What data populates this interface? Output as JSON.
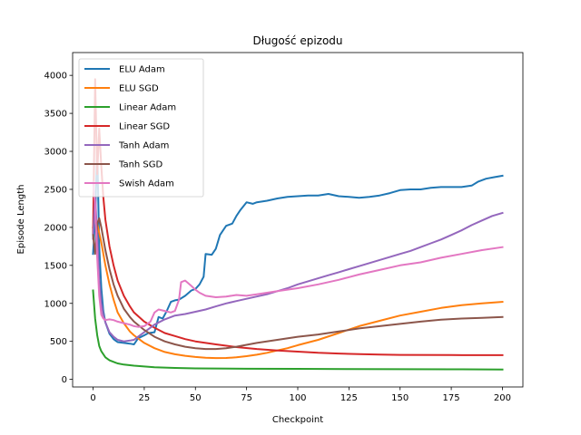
{
  "chart_data": {
    "type": "line",
    "title": "Długość epizodu",
    "xlabel": "Checkpoint",
    "ylabel": "Episode Length",
    "xlim": [
      -10,
      210
    ],
    "ylim": [
      -100,
      4300
    ],
    "xticks": [
      0,
      25,
      50,
      75,
      100,
      125,
      150,
      175,
      200
    ],
    "yticks": [
      0,
      500,
      1000,
      1500,
      2000,
      2500,
      3000,
      3500,
      4000
    ],
    "grid": false,
    "legend_position": "upper-left",
    "series": [
      {
        "name": "ELU Adam",
        "color": "#1f77b4",
        "x": [
          0,
          1,
          2,
          3,
          4,
          5,
          6,
          8,
          10,
          12,
          15,
          18,
          20,
          22,
          25,
          27,
          30,
          32,
          34,
          36,
          38,
          40,
          42,
          45,
          48,
          50,
          52,
          54,
          55,
          58,
          60,
          62,
          65,
          68,
          70,
          72,
          75,
          78,
          80,
          85,
          90,
          95,
          100,
          105,
          110,
          115,
          120,
          125,
          130,
          135,
          140,
          145,
          150,
          155,
          160,
          165,
          170,
          175,
          180,
          185,
          188,
          192,
          196,
          200
        ],
        "y": [
          1650,
          2100,
          3050,
          1750,
          1200,
          900,
          750,
          600,
          530,
          490,
          480,
          470,
          460,
          540,
          580,
          610,
          620,
          820,
          800,
          900,
          1020,
          1040,
          1050,
          1100,
          1170,
          1190,
          1250,
          1350,
          1650,
          1640,
          1720,
          1900,
          2020,
          2050,
          2150,
          2230,
          2330,
          2310,
          2330,
          2350,
          2380,
          2400,
          2410,
          2420,
          2420,
          2440,
          2410,
          2400,
          2390,
          2400,
          2420,
          2450,
          2490,
          2500,
          2500,
          2520,
          2530,
          2530,
          2530,
          2550,
          2600,
          2640,
          2660,
          2680
        ]
      },
      {
        "name": "ELU SGD",
        "color": "#ff7f0e",
        "x": [
          0,
          1,
          2,
          4,
          6,
          8,
          10,
          12,
          15,
          18,
          20,
          25,
          30,
          35,
          40,
          45,
          50,
          55,
          60,
          65,
          70,
          75,
          80,
          85,
          90,
          95,
          100,
          110,
          120,
          130,
          140,
          150,
          160,
          170,
          180,
          190,
          200
        ],
        "y": [
          2000,
          2150,
          2050,
          1800,
          1500,
          1250,
          1050,
          880,
          740,
          630,
          580,
          480,
          410,
          360,
          330,
          310,
          295,
          285,
          280,
          282,
          290,
          305,
          325,
          350,
          380,
          410,
          450,
          520,
          610,
          700,
          770,
          840,
          890,
          940,
          975,
          1000,
          1020
        ]
      },
      {
        "name": "Linear Adam",
        "color": "#2ca02c",
        "x": [
          0,
          1,
          2,
          3,
          4,
          6,
          8,
          10,
          12,
          15,
          20,
          25,
          30,
          40,
          50,
          75,
          100,
          125,
          150,
          175,
          200
        ],
        "y": [
          1170,
          800,
          580,
          440,
          370,
          290,
          250,
          230,
          210,
          195,
          180,
          170,
          160,
          150,
          145,
          140,
          138,
          136,
          134,
          132,
          130
        ]
      },
      {
        "name": "Linear SGD",
        "color": "#d62728",
        "x": [
          0,
          1,
          2,
          3,
          4,
          5,
          6,
          8,
          10,
          12,
          15,
          18,
          20,
          25,
          30,
          35,
          40,
          45,
          50,
          60,
          70,
          80,
          90,
          100,
          110,
          120,
          130,
          140,
          150,
          175,
          200
        ],
        "y": [
          1900,
          3950,
          2700,
          3300,
          2800,
          2400,
          2100,
          1750,
          1500,
          1300,
          1100,
          960,
          880,
          760,
          680,
          610,
          570,
          530,
          500,
          460,
          425,
          400,
          380,
          365,
          350,
          340,
          332,
          326,
          322,
          320,
          318
        ]
      },
      {
        "name": "Tanh Adam",
        "color": "#9467bd",
        "x": [
          0,
          1,
          2,
          3,
          4,
          5,
          6,
          8,
          10,
          12,
          15,
          18,
          20,
          22,
          25,
          28,
          30,
          35,
          40,
          45,
          50,
          55,
          60,
          65,
          70,
          75,
          80,
          85,
          90,
          95,
          100,
          105,
          110,
          115,
          120,
          125,
          130,
          135,
          140,
          145,
          150,
          155,
          160,
          165,
          170,
          175,
          180,
          185,
          190,
          195,
          200
        ],
        "y": [
          1850,
          2400,
          1900,
          1300,
          1000,
          850,
          750,
          620,
          560,
          520,
          500,
          510,
          520,
          560,
          620,
          680,
          720,
          790,
          840,
          860,
          890,
          920,
          960,
          1000,
          1030,
          1060,
          1090,
          1120,
          1160,
          1200,
          1250,
          1290,
          1330,
          1370,
          1410,
          1450,
          1490,
          1530,
          1570,
          1610,
          1650,
          1690,
          1740,
          1790,
          1840,
          1900,
          1960,
          2030,
          2090,
          2150,
          2190
        ]
      },
      {
        "name": "Tanh SGD",
        "color": "#8c564b",
        "x": [
          0,
          1,
          2,
          3,
          4,
          6,
          8,
          10,
          12,
          15,
          18,
          20,
          25,
          30,
          35,
          40,
          45,
          50,
          55,
          60,
          65,
          70,
          75,
          80,
          90,
          100,
          110,
          120,
          130,
          140,
          150,
          160,
          170,
          180,
          190,
          200
        ],
        "y": [
          1900,
          1650,
          2050,
          2120,
          2000,
          1700,
          1450,
          1250,
          1100,
          930,
          820,
          760,
          650,
          560,
          500,
          460,
          430,
          410,
          400,
          400,
          410,
          430,
          455,
          480,
          520,
          560,
          590,
          630,
          670,
          700,
          730,
          760,
          785,
          800,
          810,
          820
        ]
      },
      {
        "name": "Swish Adam",
        "color": "#e377c2",
        "x": [
          0,
          1,
          2,
          3,
          4,
          5,
          6,
          8,
          10,
          12,
          15,
          18,
          20,
          22,
          25,
          28,
          30,
          32,
          35,
          38,
          40,
          42,
          43,
          45,
          48,
          50,
          52,
          55,
          60,
          65,
          70,
          75,
          80,
          90,
          100,
          110,
          120,
          130,
          140,
          150,
          160,
          170,
          180,
          190,
          200
        ],
        "y": [
          2600,
          2300,
          1600,
          1100,
          850,
          800,
          780,
          790,
          780,
          760,
          740,
          720,
          700,
          690,
          700,
          760,
          880,
          920,
          900,
          880,
          900,
          1050,
          1280,
          1300,
          1230,
          1180,
          1140,
          1100,
          1080,
          1090,
          1110,
          1100,
          1120,
          1160,
          1200,
          1250,
          1310,
          1380,
          1440,
          1500,
          1540,
          1600,
          1650,
          1700,
          1740
        ]
      }
    ]
  }
}
